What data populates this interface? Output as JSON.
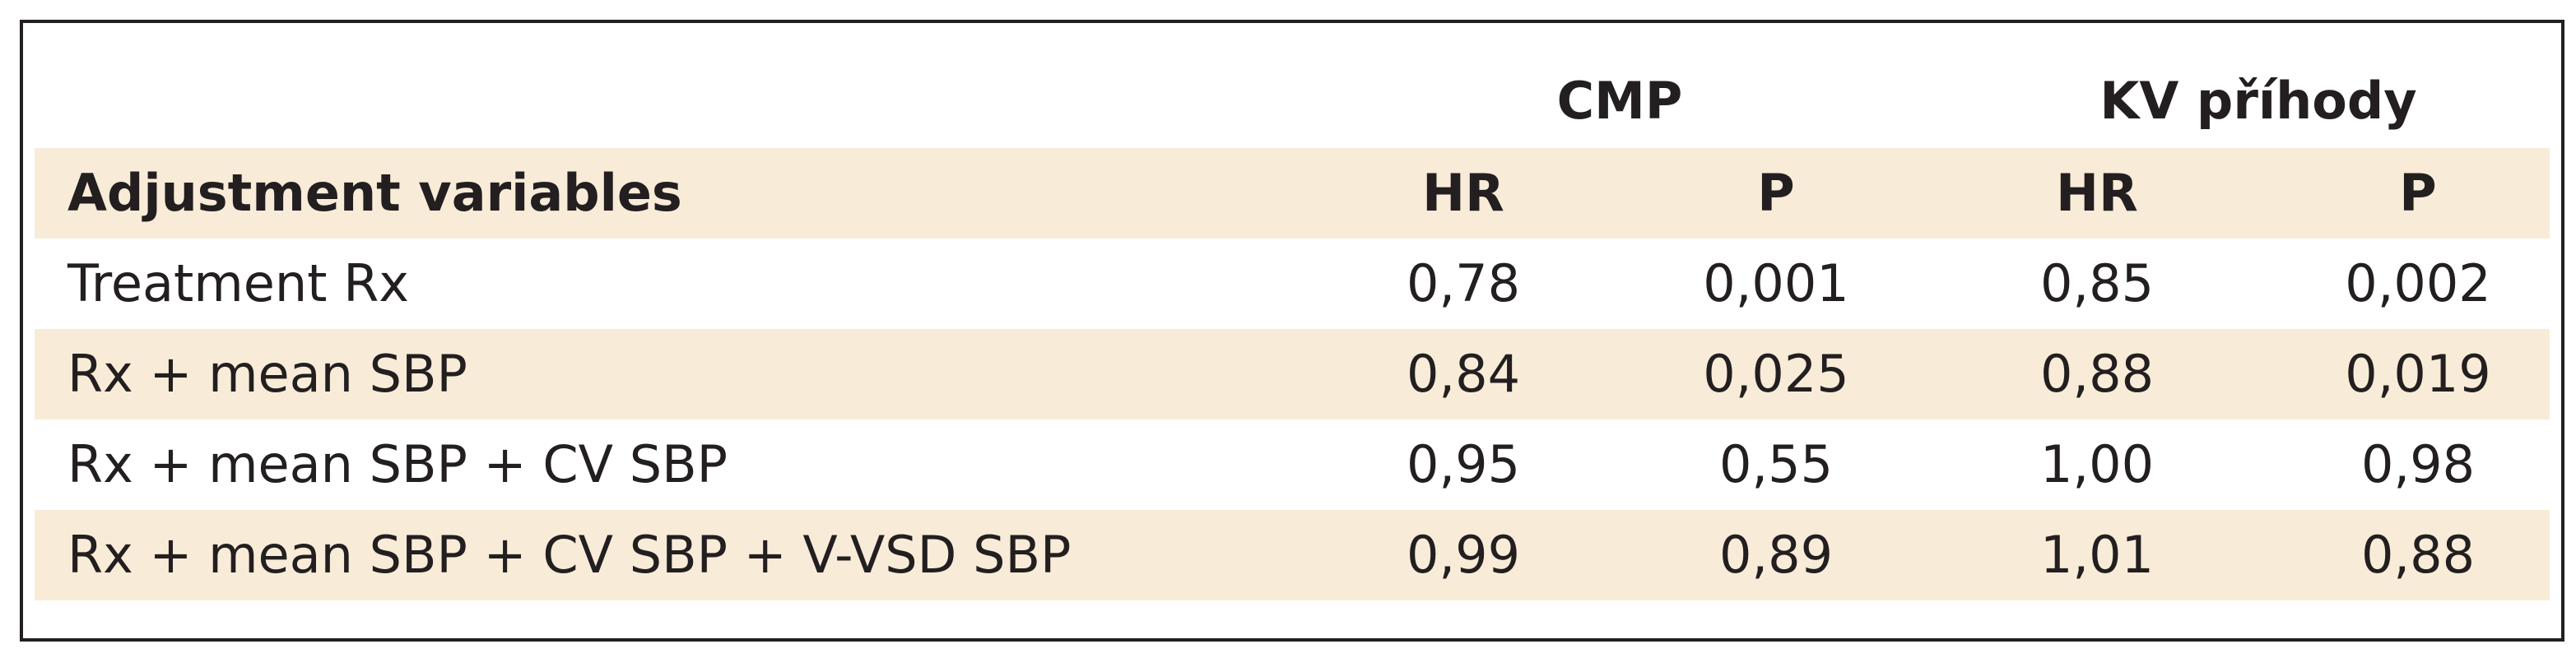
{
  "table": {
    "group_headers": [
      "CMP",
      "KV příhody"
    ],
    "header": [
      "Adjustment variables",
      "HR",
      "P",
      "HR",
      "P"
    ],
    "rows": [
      [
        "Treatment Rx",
        "0,78",
        "0,001",
        "0,85",
        "0,002"
      ],
      [
        "Rx + mean SBP",
        "0,84",
        "0,025",
        "0,88",
        "0,019"
      ],
      [
        "Rx + mean SBP + CV SBP",
        "0,95",
        "0,55",
        "1,00",
        "0,98"
      ],
      [
        "Rx + mean SBP + CV SBP + V-VSD SBP",
        "0,99",
        "0,89",
        "1,01",
        "0,88"
      ]
    ]
  }
}
